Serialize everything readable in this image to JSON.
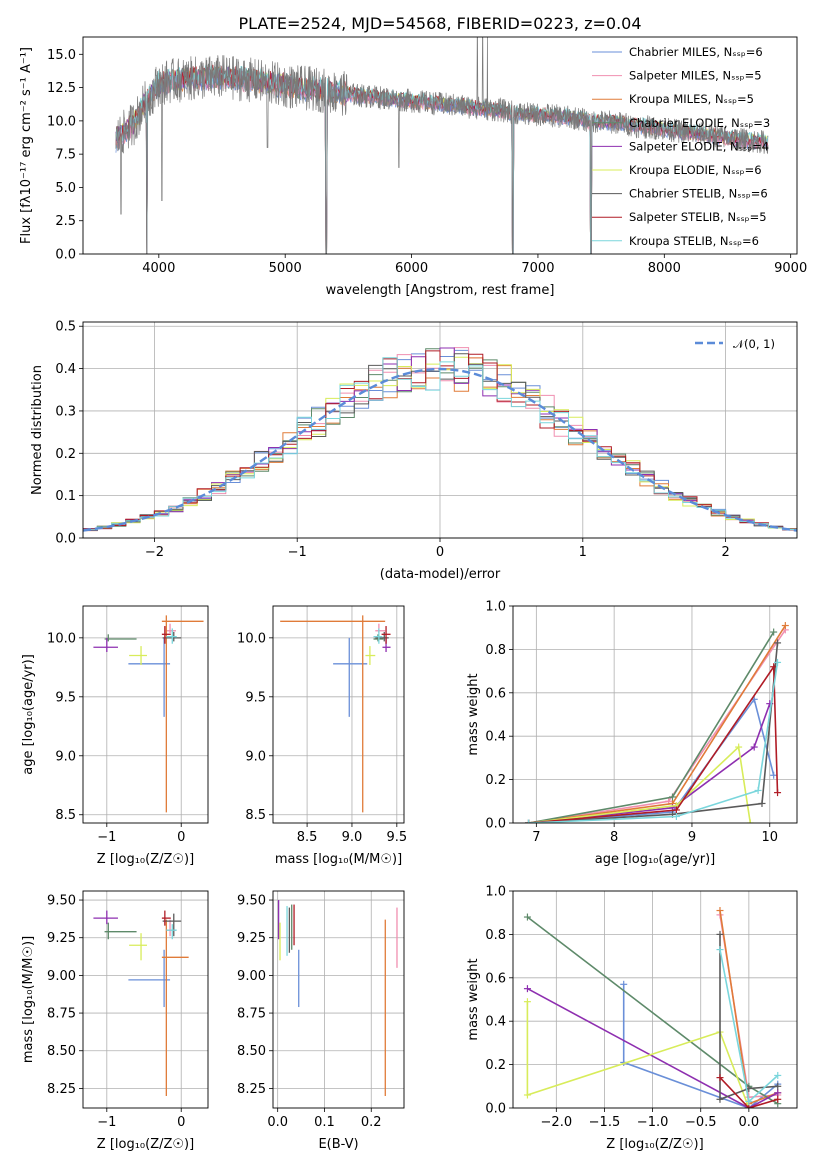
{
  "palette": [
    "#6a8fd8",
    "#f08fb0",
    "#e07b39",
    "#5e8a6a",
    "#8e2fb0",
    "#d8ec5a",
    "#5a5a5a",
    "#b01c26",
    "#7ad6dc"
  ],
  "chart_data": [
    {
      "id": "spectrum",
      "type": "line",
      "title": "PLATE=2524, MJD=54568, FIBERID=0223, z=0.04",
      "xlabel": "wavelength [Angstrom, rest frame]",
      "ylabel": "Flux [fλ10⁻¹⁷ erg cm⁻² s⁻¹ A⁻¹]",
      "xlim": [
        3400,
        9050
      ],
      "ylim": [
        0,
        16.3
      ],
      "xticks": [
        4000,
        5000,
        6000,
        7000,
        8000,
        9000
      ],
      "yticks": [
        0.0,
        2.5,
        5.0,
        7.5,
        10.0,
        12.5,
        15.0
      ],
      "legend_position": "top-right",
      "legend": [
        "Chabrier MILES, Nₛₛₚ=6",
        "Salpeter MILES, Nₛₛₚ=5",
        "Kroupa MILES, Nₛₛₚ=5",
        "Chabrier ELODIE, Nₛₛₚ=3",
        "Salpeter ELODIE, Nₛₛₚ=4",
        "Kroupa ELODIE, Nₛₛₚ=6",
        "Chabrier STELIB, Nₛₛₚ=6",
        "Salpeter STELIB, Nₛₛₚ=5",
        "Kroupa STELIB, Nₛₛₚ=6"
      ],
      "data_continuum": {
        "x": [
          3650,
          3800,
          3900,
          4000,
          4100,
          4300,
          4500,
          4700,
          4900,
          5100,
          5300,
          5500,
          5700,
          5900,
          6100,
          6300,
          6500,
          6700,
          6900,
          7100,
          7300,
          7400,
          7600,
          7800,
          8000,
          8200,
          8400,
          8600,
          8800
        ],
        "y": [
          8.5,
          9.8,
          11.5,
          12.8,
          13.0,
          13.2,
          13.3,
          13.1,
          12.8,
          12.5,
          12.3,
          12.0,
          11.8,
          11.6,
          11.4,
          11.2,
          11.0,
          10.8,
          10.5,
          10.4,
          10.2,
          10.0,
          9.9,
          9.6,
          9.4,
          9.1,
          8.9,
          8.6,
          8.4
        ]
      },
      "absorption_dips": [
        {
          "x": 3905,
          "y": 0
        },
        {
          "x": 5325,
          "y": 0
        },
        {
          "x": 6800,
          "y": 0
        },
        {
          "x": 7420,
          "y": 0
        },
        {
          "x": 4025,
          "y": 4.0
        },
        {
          "x": 3700,
          "y": 3.0
        },
        {
          "x": 5900,
          "y": 6.5
        },
        {
          "x": 4860,
          "y": 8.0
        }
      ],
      "emission_lines": [
        {
          "x": 6520,
          "y": 16.3
        },
        {
          "x": 6563,
          "y": 16.3
        },
        {
          "x": 6600,
          "y": 16.3
        }
      ]
    },
    {
      "id": "residuals",
      "type": "histogram",
      "xlabel": "(data-model)/error",
      "ylabel": "Normed distribution",
      "xlim": [
        -2.5,
        2.5
      ],
      "ylim": [
        0,
        0.51
      ],
      "xticks": [
        -2,
        -1,
        0,
        1,
        2
      ],
      "yticks": [
        0.0,
        0.1,
        0.2,
        0.3,
        0.4,
        0.5
      ],
      "legend_position": "top-right",
      "legend": [
        "𝒩(0, 1)"
      ],
      "bin_width": 0.1,
      "bin_start": -2.5,
      "reference_curve": "gaussian N(0,1)"
    },
    {
      "id": "age-vs-Z",
      "type": "errorbar",
      "xlabel": "Z [log₁₀(Z/Z☉)]",
      "ylabel": "age  [log₁₀(age/yr)]",
      "xlim": [
        -1.32,
        0.36
      ],
      "ylim": [
        8.43,
        10.27
      ],
      "xticks": [
        -1,
        0
      ],
      "yticks": [
        8.5,
        9.0,
        9.5,
        10.0
      ],
      "points": [
        {
          "x": -0.23,
          "y": 9.78,
          "xlo": 0.48,
          "xhi": 0.08,
          "ylo": 0.45,
          "yhi": 0.22
        },
        {
          "x": -0.15,
          "y": 10.06,
          "xlo": 0.05,
          "xhi": 0.08,
          "ylo": 0.02,
          "yhi": 0.06
        },
        {
          "x": -0.2,
          "y": 10.14,
          "xlo": 0.06,
          "xhi": 0.5,
          "ylo": 1.62,
          "yhi": 0.05
        },
        {
          "x": -0.98,
          "y": 9.99,
          "xlo": 0.05,
          "xhi": 0.38,
          "ylo": 0.02,
          "yhi": 0.04
        },
        {
          "x": -1.0,
          "y": 9.92,
          "xlo": 0.18,
          "xhi": 0.15,
          "ylo": 0.04,
          "yhi": 0.08
        },
        {
          "x": -0.54,
          "y": 9.85,
          "xlo": 0.16,
          "xhi": 0.08,
          "ylo": 0.08,
          "yhi": 0.08
        },
        {
          "x": -0.1,
          "y": 10.0,
          "xlo": 0.15,
          "xhi": 0.1,
          "ylo": 0.03,
          "yhi": 0.05
        },
        {
          "x": -0.22,
          "y": 10.03,
          "xlo": 0.04,
          "xhi": 0.08,
          "ylo": 0.08,
          "yhi": 0.07
        },
        {
          "x": -0.12,
          "y": 10.01,
          "xlo": 0.08,
          "xhi": 0.06,
          "ylo": 0.06,
          "yhi": 0.07
        }
      ]
    },
    {
      "id": "age-vs-mass",
      "type": "errorbar",
      "xlabel": "mass [log₁₀(M/M☉)]",
      "ylabel": "",
      "xlim": [
        8.12,
        9.58
      ],
      "ylim": [
        8.43,
        10.27
      ],
      "xticks": [
        8.5,
        9.0,
        9.5
      ],
      "yticks": [
        8.5,
        9.0,
        9.5,
        10.0
      ],
      "points": [
        {
          "x": 8.97,
          "y": 9.78,
          "xlo": 0.18,
          "xhi": 0.2,
          "ylo": 0.45,
          "yhi": 0.22
        },
        {
          "x": 9.3,
          "y": 10.06,
          "xlo": 0.04,
          "xhi": 0.07,
          "ylo": 0.02,
          "yhi": 0.06
        },
        {
          "x": 9.12,
          "y": 10.14,
          "xlo": 0.92,
          "xhi": 0.25,
          "ylo": 1.62,
          "yhi": 0.05
        },
        {
          "x": 9.29,
          "y": 9.99,
          "xlo": 0.05,
          "xhi": 0.06,
          "ylo": 0.02,
          "yhi": 0.04
        },
        {
          "x": 9.38,
          "y": 9.92,
          "xlo": 0.04,
          "xhi": 0.05,
          "ylo": 0.04,
          "yhi": 0.08
        },
        {
          "x": 9.2,
          "y": 9.85,
          "xlo": 0.05,
          "xhi": 0.06,
          "ylo": 0.08,
          "yhi": 0.08
        },
        {
          "x": 9.36,
          "y": 10.0,
          "xlo": 0.1,
          "xhi": 0.05,
          "ylo": 0.03,
          "yhi": 0.05
        },
        {
          "x": 9.38,
          "y": 10.03,
          "xlo": 0.05,
          "xhi": 0.05,
          "ylo": 0.08,
          "yhi": 0.07
        },
        {
          "x": 9.3,
          "y": 10.01,
          "xlo": 0.06,
          "xhi": 0.04,
          "ylo": 0.06,
          "yhi": 0.07
        }
      ]
    },
    {
      "id": "massweight-vs-age",
      "type": "line",
      "xlabel": "age  [log₁₀(age/yr)]",
      "ylabel": "mass weight",
      "xlim": [
        6.7,
        10.35
      ],
      "ylim": [
        0,
        1.0
      ],
      "xticks": [
        7,
        8,
        9,
        10
      ],
      "yticks": [
        0.0,
        0.2,
        0.4,
        0.6,
        0.8,
        1.0
      ],
      "series": [
        {
          "x": [
            6.9,
            8.75,
            9.8,
            10.05
          ],
          "y": [
            0.0,
            0.05,
            0.57,
            0.22
          ]
        },
        {
          "x": [
            6.9,
            8.7,
            10.2
          ],
          "y": [
            0.0,
            0.1,
            0.89
          ]
        },
        {
          "x": [
            6.9,
            8.75,
            10.2
          ],
          "y": [
            0.0,
            0.09,
            0.91
          ]
        },
        {
          "x": [
            6.9,
            8.75,
            10.05
          ],
          "y": [
            0.0,
            0.12,
            0.88
          ]
        },
        {
          "x": [
            6.9,
            8.75,
            9.8,
            10.0
          ],
          "y": [
            0.0,
            0.07,
            0.35,
            0.55
          ]
        },
        {
          "x": [
            6.9,
            8.8,
            9.6,
            9.75
          ],
          "y": [
            0.0,
            0.08,
            0.35,
            0.0
          ]
        },
        {
          "x": [
            6.9,
            8.75,
            9.9,
            10.1
          ],
          "y": [
            0.0,
            0.04,
            0.09,
            0.83
          ]
        },
        {
          "x": [
            6.9,
            8.8,
            10.05,
            10.1
          ],
          "y": [
            0.0,
            0.06,
            0.72,
            0.14
          ]
        },
        {
          "x": [
            6.9,
            8.8,
            9.85,
            10.1
          ],
          "y": [
            0.0,
            0.03,
            0.15,
            0.74
          ]
        }
      ]
    },
    {
      "id": "mass-vs-Z",
      "type": "errorbar",
      "xlabel": "Z [log₁₀(Z/Z☉)]",
      "ylabel": "mass [log₁₀(M/M☉)]",
      "xlim": [
        -1.32,
        0.36
      ],
      "ylim": [
        8.12,
        9.56
      ],
      "xticks": [
        -1,
        0
      ],
      "yticks": [
        8.25,
        8.5,
        8.75,
        9.0,
        9.25,
        9.5
      ],
      "points": [
        {
          "x": -0.23,
          "y": 8.97,
          "xlo": 0.48,
          "xhi": 0.08,
          "ylo": 0.18,
          "yhi": 0.2
        },
        {
          "x": -0.15,
          "y": 9.3,
          "xlo": 0.05,
          "xhi": 0.08,
          "ylo": 0.04,
          "yhi": 0.07
        },
        {
          "x": -0.2,
          "y": 9.12,
          "xlo": 0.06,
          "xhi": 0.3,
          "ylo": 0.92,
          "yhi": 0.25
        },
        {
          "x": -0.98,
          "y": 9.29,
          "xlo": 0.05,
          "xhi": 0.38,
          "ylo": 0.05,
          "yhi": 0.06
        },
        {
          "x": -1.0,
          "y": 9.38,
          "xlo": 0.18,
          "xhi": 0.15,
          "ylo": 0.04,
          "yhi": 0.05
        },
        {
          "x": -0.54,
          "y": 9.2,
          "xlo": 0.16,
          "xhi": 0.08,
          "ylo": 0.1,
          "yhi": 0.08
        },
        {
          "x": -0.1,
          "y": 9.36,
          "xlo": 0.15,
          "xhi": 0.1,
          "ylo": 0.1,
          "yhi": 0.05
        },
        {
          "x": -0.22,
          "y": 9.38,
          "xlo": 0.04,
          "xhi": 0.08,
          "ylo": 0.05,
          "yhi": 0.05
        },
        {
          "x": -0.12,
          "y": 9.3,
          "xlo": 0.08,
          "xhi": 0.06,
          "ylo": 0.06,
          "yhi": 0.04
        }
      ]
    },
    {
      "id": "mass-vs-EBV",
      "type": "errorbar",
      "xlabel": "E(B-V)",
      "ylabel": "",
      "xlim": [
        -0.01,
        0.27
      ],
      "ylim": [
        8.12,
        9.56
      ],
      "xticks": [
        0.0,
        0.1,
        0.2
      ],
      "yticks": [
        8.25,
        8.5,
        8.75,
        9.0,
        9.25,
        9.5
      ],
      "points": [
        {
          "x": 0.045,
          "y": 8.97,
          "xlo": 0,
          "xhi": 0,
          "ylo": 0.18,
          "yhi": 0.2
        },
        {
          "x": 0.255,
          "y": 9.3,
          "xlo": 0,
          "xhi": 0,
          "ylo": 0.25,
          "yhi": 0.15
        },
        {
          "x": 0.23,
          "y": 9.12,
          "xlo": 0,
          "xhi": 0,
          "ylo": 0.92,
          "yhi": 0.25
        },
        {
          "x": 0.03,
          "y": 9.29,
          "xlo": 0,
          "xhi": 0,
          "ylo": 0.12,
          "yhi": 0.18
        },
        {
          "x": 0.002,
          "y": 9.38,
          "xlo": 0,
          "xhi": 0,
          "ylo": 0.14,
          "yhi": 0.12
        },
        {
          "x": 0.005,
          "y": 9.2,
          "xlo": 0,
          "xhi": 0,
          "ylo": 0.1,
          "yhi": 0.15
        },
        {
          "x": 0.025,
          "y": 9.3,
          "xlo": 0,
          "xhi": 0,
          "ylo": 0.15,
          "yhi": 0.15
        },
        {
          "x": 0.035,
          "y": 9.32,
          "xlo": 0,
          "xhi": 0,
          "ylo": 0.12,
          "yhi": 0.15
        },
        {
          "x": 0.02,
          "y": 9.28,
          "xlo": 0,
          "xhi": 0,
          "ylo": 0.15,
          "yhi": 0.18
        }
      ]
    },
    {
      "id": "massweight-vs-Z",
      "type": "line",
      "xlabel": "Z [log₁₀(Z/Z☉)]",
      "ylabel": "mass weight",
      "xlim": [
        -2.45,
        0.5
      ],
      "ylim": [
        0,
        1.0
      ],
      "xticks": [
        -2.0,
        -1.5,
        -1.0,
        -0.5,
        0.0
      ],
      "yticks": [
        0.0,
        0.2,
        0.4,
        0.6,
        0.8,
        1.0
      ],
      "series": [
        {
          "x": [
            -1.3,
            -1.3,
            0.0,
            0.3
          ],
          "y": [
            0.57,
            0.21,
            0.0,
            0.11
          ]
        },
        {
          "x": [
            -0.3,
            0.0,
            0.3
          ],
          "y": [
            0.89,
            0.05,
            0.06
          ]
        },
        {
          "x": [
            -0.3,
            0.0,
            0.3
          ],
          "y": [
            0.91,
            0.02,
            0.07
          ]
        },
        {
          "x": [
            -2.3,
            0.0,
            0.3
          ],
          "y": [
            0.88,
            0.1,
            0.02
          ]
        },
        {
          "x": [
            -2.3,
            0.0,
            0.3
          ],
          "y": [
            0.55,
            0.0,
            0.07
          ]
        },
        {
          "x": [
            -2.3,
            -2.3,
            -0.3,
            0.0
          ],
          "y": [
            0.49,
            0.06,
            0.35,
            0.0
          ]
        },
        {
          "x": [
            -0.3,
            -0.3,
            0.0,
            0.3
          ],
          "y": [
            0.8,
            0.04,
            0.09,
            0.1
          ]
        },
        {
          "x": [
            -0.3,
            0.0,
            0.3
          ],
          "y": [
            0.14,
            0.0,
            0.04
          ]
        },
        {
          "x": [
            -0.3,
            0.0,
            0.3
          ],
          "y": [
            0.73,
            0.03,
            0.15
          ]
        }
      ]
    }
  ]
}
